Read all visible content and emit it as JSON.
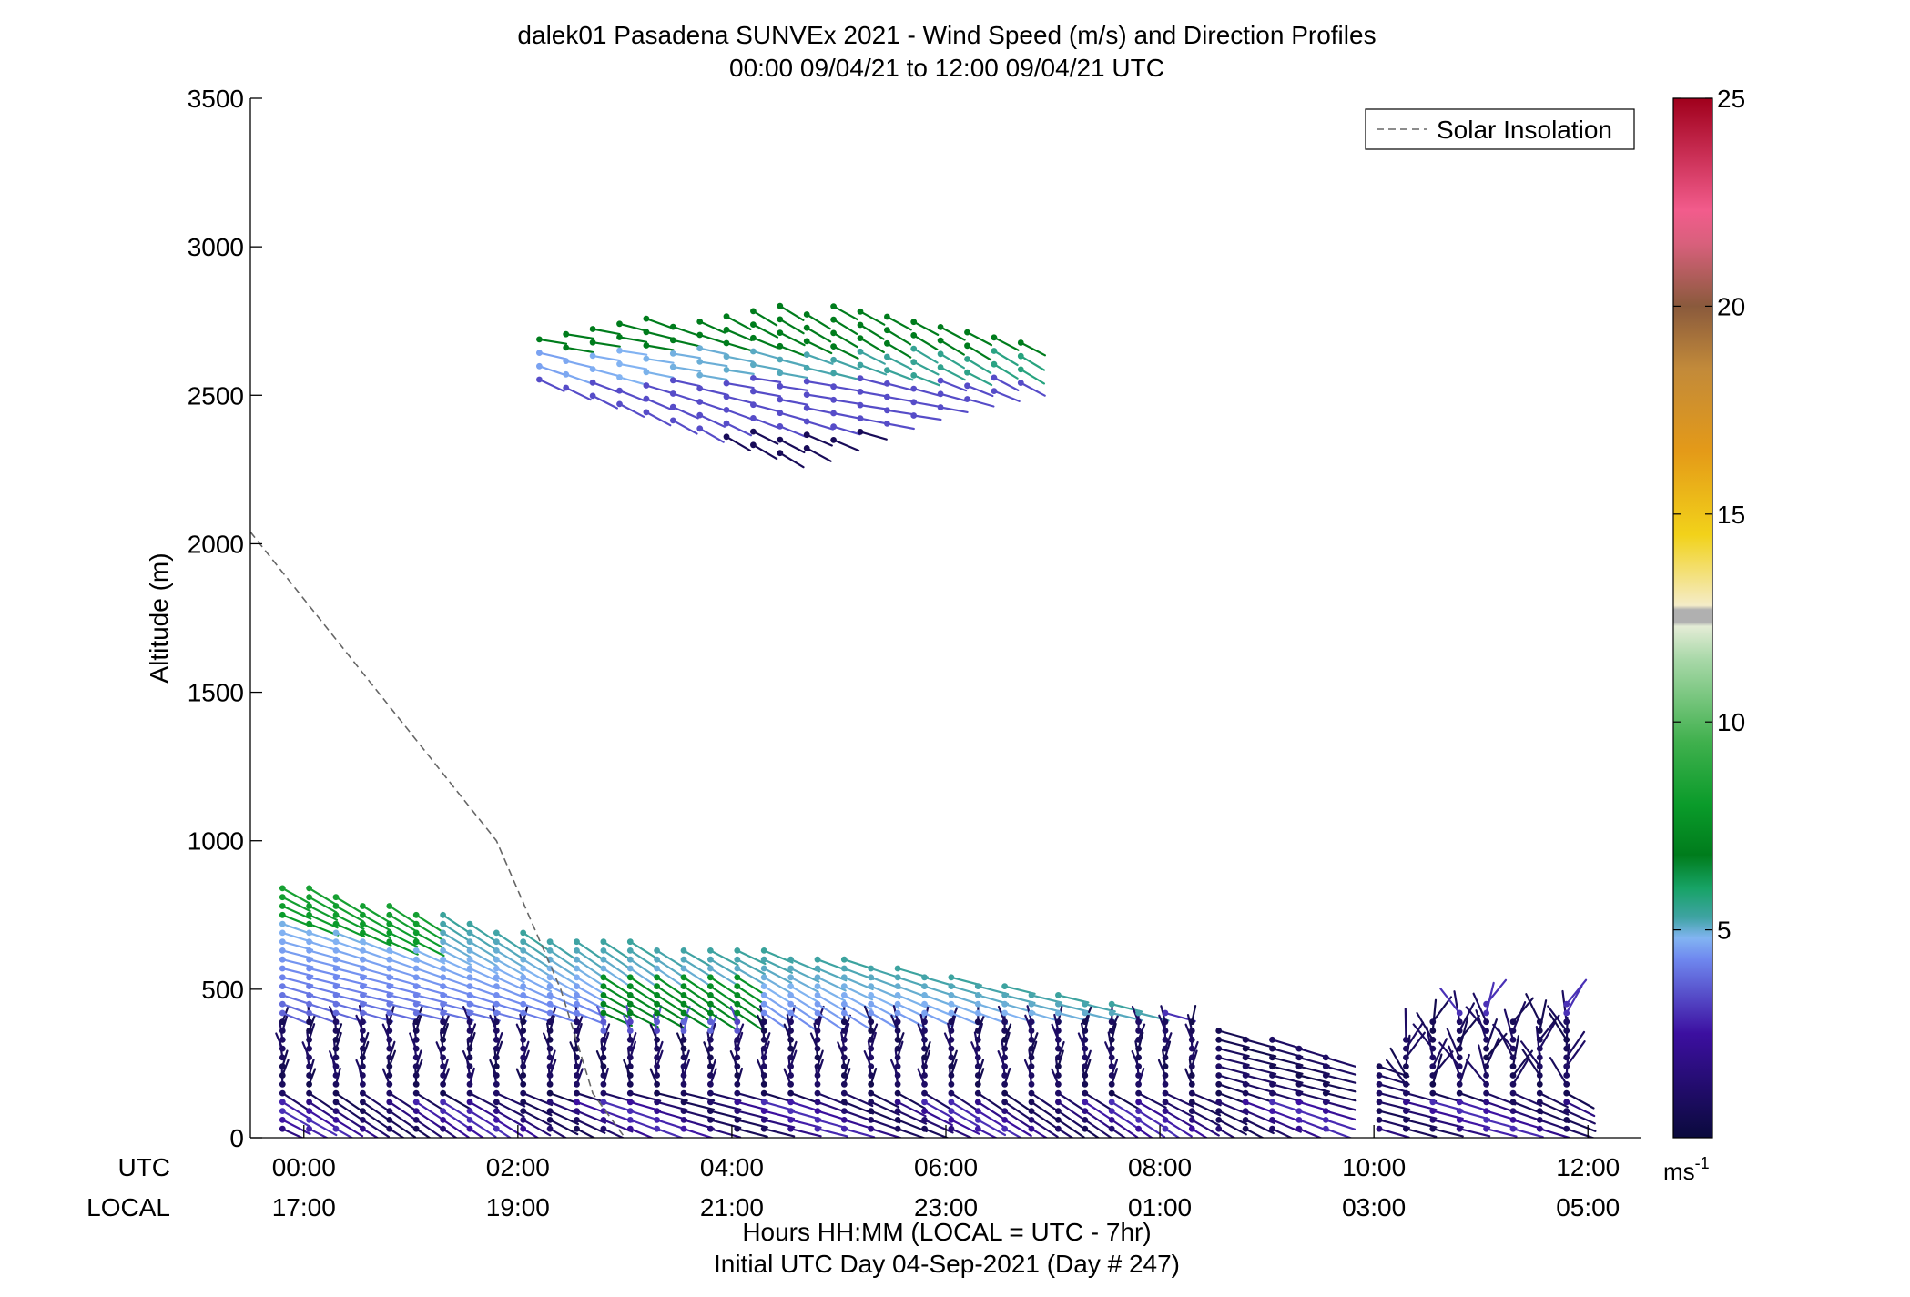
{
  "chart_data": {
    "type": "wind_profile",
    "title": "dalek01 Pasadena SUNVEx 2021 - Wind Speed (m/s) and Direction Profiles",
    "subtitle": "00:00 09/04/21 to 12:00 09/04/21  UTC",
    "ylabel": "Altitude (m)",
    "xlabel": "Hours HH:MM  (LOCAL = UTC - 7hr)",
    "footnote": "Initial UTC Day 04-Sep-2021 (Day # 247)",
    "utc_row_label": "UTC",
    "local_row_label": "LOCAL",
    "x_utc_hours_range": [
      -0.5,
      12.5
    ],
    "ylim": [
      0,
      3500
    ],
    "y_ticks": [
      0,
      500,
      1000,
      1500,
      2000,
      2500,
      3000,
      3500
    ],
    "x_ticks": [
      {
        "utc_hour": 0,
        "utc": "00:00",
        "local": "17:00"
      },
      {
        "utc_hour": 2,
        "utc": "02:00",
        "local": "19:00"
      },
      {
        "utc_hour": 4,
        "utc": "04:00",
        "local": "21:00"
      },
      {
        "utc_hour": 6,
        "utc": "06:00",
        "local": "23:00"
      },
      {
        "utc_hour": 8,
        "utc": "08:00",
        "local": "01:00"
      },
      {
        "utc_hour": 10,
        "utc": "10:00",
        "local": "03:00"
      },
      {
        "utc_hour": 12,
        "utc": "12:00",
        "local": "05:00"
      }
    ],
    "legend": {
      "label": "Solar Insolation",
      "placement": "top-right"
    },
    "colorbar": {
      "range": [
        0,
        25
      ],
      "ticks": [
        5,
        10,
        15,
        20,
        25
      ],
      "unit_text": "ms",
      "unit_exponent": "-1",
      "stops": [
        {
          "v": 0,
          "c": "#0a0a3c"
        },
        {
          "v": 2.5,
          "c": "#3c0fa0"
        },
        {
          "v": 4.3,
          "c": "#6f88ef"
        },
        {
          "v": 4.8,
          "c": "#82b4f2"
        },
        {
          "v": 5.3,
          "c": "#3fa3a3"
        },
        {
          "v": 6.0,
          "c": "#17a366"
        },
        {
          "v": 6.8,
          "c": "#007c1c"
        },
        {
          "v": 8.0,
          "c": "#0a9b2a"
        },
        {
          "v": 9.5,
          "c": "#3fb04d"
        },
        {
          "v": 11.5,
          "c": "#a8d8a8"
        },
        {
          "v": 12.3,
          "c": "#e4ecd6"
        },
        {
          "v": 12.4,
          "c": "#b0b0b0"
        },
        {
          "v": 12.7,
          "c": "#b0b0b0"
        },
        {
          "v": 12.8,
          "c": "#f4ecc8"
        },
        {
          "v": 14.5,
          "c": "#f2d21a"
        },
        {
          "v": 16.5,
          "c": "#e49a18"
        },
        {
          "v": 18.5,
          "c": "#c28a3a"
        },
        {
          "v": 20.0,
          "c": "#8a5a3c"
        },
        {
          "v": 21.5,
          "c": "#d8607c"
        },
        {
          "v": 22.3,
          "c": "#f25c8c"
        },
        {
          "v": 25,
          "c": "#a0001c"
        }
      ]
    },
    "solar_insolation_line": {
      "color": "#666666",
      "points": [
        [
          -0.5,
          2040
        ],
        [
          1.8,
          1000
        ],
        [
          2.4,
          500
        ],
        [
          2.7,
          150
        ],
        [
          3.0,
          0
        ]
      ]
    },
    "wind_groups": [
      {
        "name": "lower-layer",
        "t_start": -0.2,
        "t_end": 12.0,
        "dt": 0.25,
        "z_start": 30,
        "dz": 30
      },
      {
        "name": "upper-layer",
        "t_start": 2.2,
        "t_end": 6.8,
        "dt": 0.25,
        "z_start": 2200,
        "dz": 30
      }
    ]
  }
}
